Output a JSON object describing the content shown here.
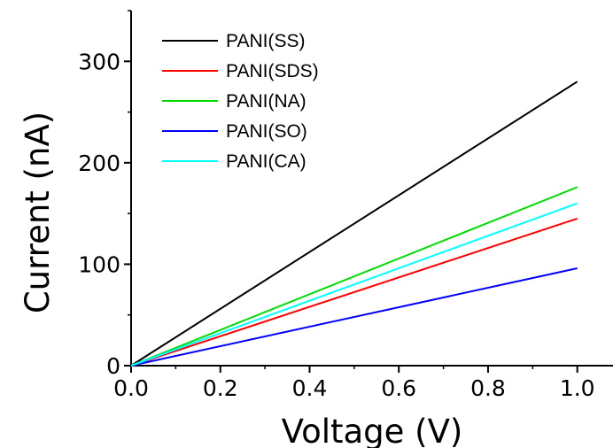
{
  "chart_data": {
    "type": "line",
    "xlabel": "Voltage (V)",
    "ylabel": "Current (nA)",
    "xlim": [
      0,
      1.08
    ],
    "ylim": [
      0,
      350
    ],
    "x_ticks": [
      "0.0",
      "0.2",
      "0.4",
      "0.6",
      "0.8",
      "1.0"
    ],
    "y_ticks": [
      "0",
      "100",
      "200",
      "300"
    ],
    "grid": false,
    "legend_position": "top-left",
    "series": [
      {
        "name": "PANI(SS)",
        "color": "#000000",
        "x": [
          0,
          1.0
        ],
        "y": [
          0,
          280
        ]
      },
      {
        "name": "PANI(SDS)",
        "color": "#ff0000",
        "x": [
          0,
          1.0
        ],
        "y": [
          0,
          145
        ]
      },
      {
        "name": "PANI(NA)",
        "color": "#00dd00",
        "x": [
          0,
          1.0
        ],
        "y": [
          0,
          176
        ]
      },
      {
        "name": "PANI(SO)",
        "color": "#0000ff",
        "x": [
          0,
          1.0
        ],
        "y": [
          0,
          96
        ]
      },
      {
        "name": "PANI(CA)",
        "color": "#00ffff",
        "x": [
          0,
          1.0
        ],
        "y": [
          0,
          160
        ]
      }
    ]
  }
}
